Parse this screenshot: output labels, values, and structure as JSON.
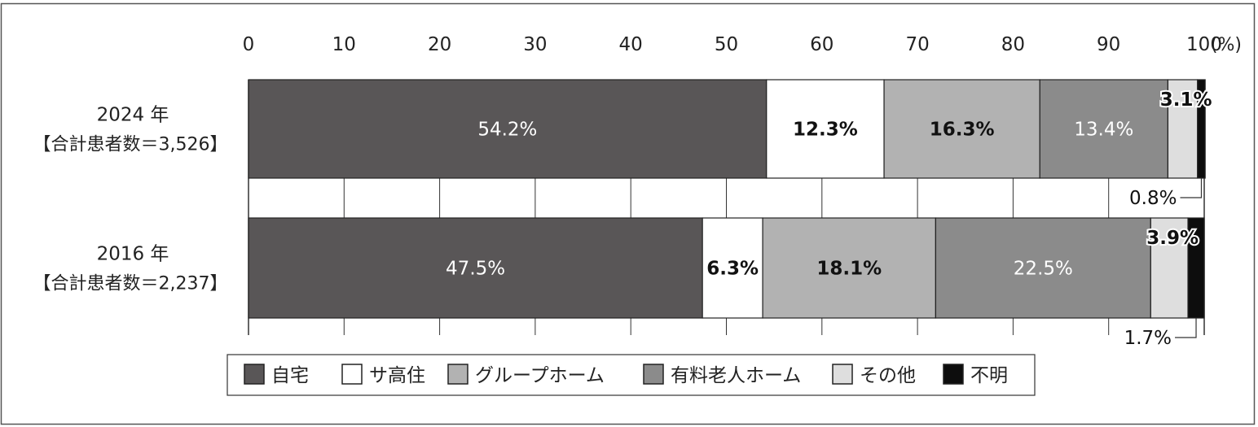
{
  "chart_data": {
    "type": "bar",
    "orientation": "horizontal",
    "stacked": true,
    "xlim": [
      0,
      100
    ],
    "xticks": [
      0,
      10,
      20,
      30,
      40,
      50,
      60,
      70,
      80,
      90,
      100
    ],
    "unit_label": "(%)",
    "grid": true,
    "legend_position": "bottom",
    "categories": [
      {
        "year": "2024 年",
        "total": "【合計患者数＝3,526】"
      },
      {
        "year": "2016 年",
        "total": "【合計患者数＝2,237】"
      }
    ],
    "series": [
      {
        "name": "自宅",
        "color": "#595657",
        "values": [
          54.2,
          47.5
        ],
        "labels": [
          "54.2%",
          "47.5%"
        ]
      },
      {
        "name": "サ高住",
        "color": "#ffffff",
        "values": [
          12.3,
          6.3
        ],
        "labels": [
          "12.3%",
          "6.3%"
        ]
      },
      {
        "name": "グループホーム",
        "color": "#b2b2b2",
        "values": [
          16.3,
          18.1
        ],
        "labels": [
          "16.3%",
          "18.1%"
        ]
      },
      {
        "name": "有料老人ホーム",
        "color": "#8b8b8b",
        "values": [
          13.4,
          22.5
        ],
        "labels": [
          "13.4%",
          "22.5%"
        ]
      },
      {
        "name": "その他",
        "color": "#dedede",
        "values": [
          3.1,
          3.9
        ],
        "labels": [
          "3.1%",
          "3.9%"
        ]
      },
      {
        "name": "不明",
        "color": "#0d0d0d",
        "values": [
          0.8,
          1.7
        ],
        "labels": [
          "0.8%",
          "1.7%"
        ]
      }
    ]
  }
}
